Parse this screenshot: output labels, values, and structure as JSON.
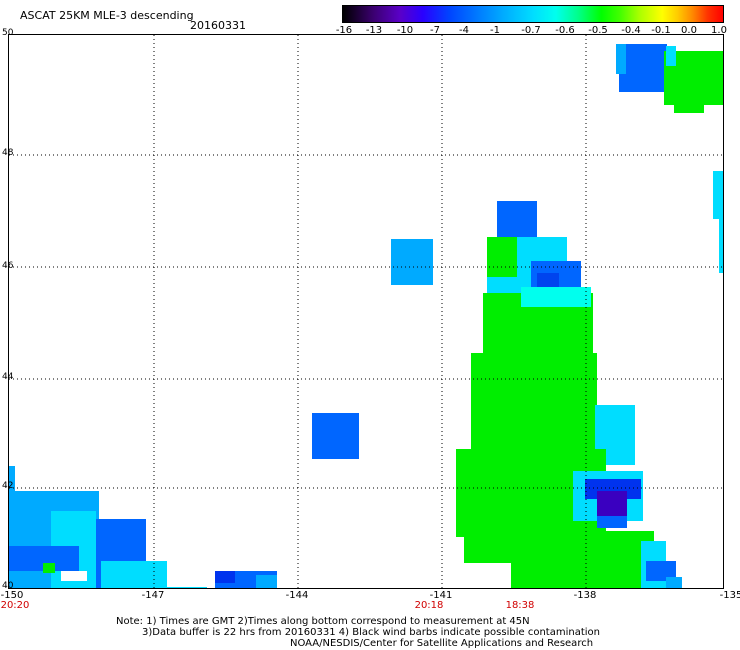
{
  "header": {
    "title": "ASCAT 25KM MLE-3 descending",
    "date": "20160331"
  },
  "colorbar": {
    "labels": [
      "-16",
      "-13",
      "-10",
      "-7",
      "-4",
      "-1",
      "-0.7",
      "-0.6",
      "-0.5",
      "-0.4",
      "-0.1",
      "0.0",
      "1.0"
    ]
  },
  "map": {
    "x_ticks": [
      "-150",
      "-147",
      "-144",
      "-141",
      "-138",
      "-135"
    ],
    "y_ticks": [
      "40",
      "42",
      "44",
      "46",
      "48",
      "50"
    ],
    "lon_range": [
      -150,
      -135
    ],
    "lat_range": [
      40,
      50
    ],
    "times": [
      "20:20",
      "20:18",
      "18:38"
    ],
    "colors": {
      "green": "#00ee00",
      "cyan": "#00ddff",
      "light_blue": "#00aaff",
      "blue": "#0066ff",
      "dark_blue": "#0022ee",
      "purple": "#3a00c0",
      "time_red": "#d00000"
    }
  },
  "notes": {
    "line1": "Note: 1) Times are GMT 2)Times along bottom correspond to measurement at 45N",
    "line2": "3)Data buffer is 22 hrs from 20160331 4) Black wind barbs indicate possible contamination",
    "line3": "NOAA/NESDIS/Center for Satellite Applications and Research"
  }
}
